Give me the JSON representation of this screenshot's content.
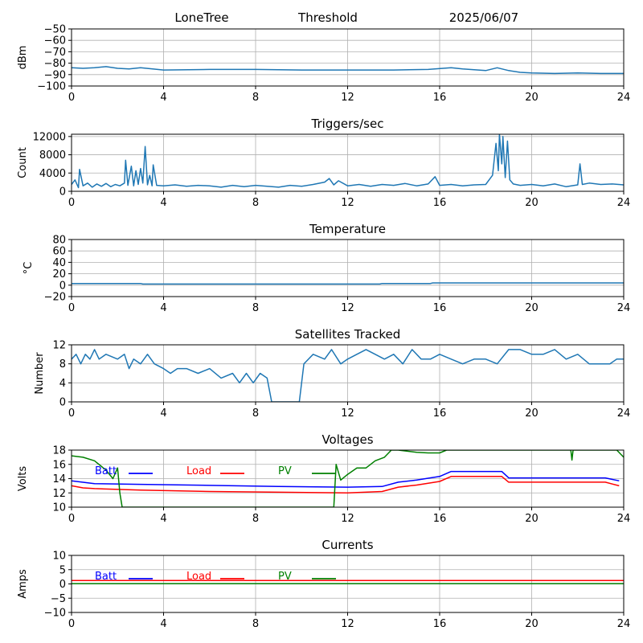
{
  "header": {
    "station": "LoneTree",
    "mode": "Threshold",
    "date": "2025/06/07"
  },
  "x_ticks": [
    "0",
    "4",
    "8",
    "12",
    "16",
    "20",
    "24"
  ],
  "chart_data": [
    {
      "id": "dbm",
      "type": "line",
      "title": "",
      "xlabel": "",
      "ylabel": "dBm",
      "xlim": [
        0,
        24
      ],
      "ylim": [
        -100,
        -50
      ],
      "yticks": [
        -100,
        -90,
        -80,
        -70,
        -60,
        -50
      ],
      "ytick_labels": [
        "−100",
        "−90",
        "−80",
        "−70",
        "−60",
        "−50"
      ],
      "grid": true,
      "series": [
        {
          "color": "#1f77b4",
          "x": [
            0,
            0.5,
            1,
            1.5,
            2,
            2.5,
            3,
            4,
            6,
            8,
            10,
            12,
            14,
            15.5,
            16.5,
            17,
            18,
            18.5,
            19,
            19.5,
            20,
            21,
            22,
            23,
            24
          ],
          "y": [
            -84,
            -84.5,
            -84,
            -83,
            -84.5,
            -85,
            -84,
            -86,
            -85.5,
            -85.5,
            -86,
            -86,
            -86,
            -85.5,
            -84,
            -85,
            -86.5,
            -84,
            -86.5,
            -88,
            -88.5,
            -89,
            -88.5,
            -89,
            -89
          ]
        }
      ]
    },
    {
      "id": "triggers",
      "type": "line",
      "title": "Triggers/sec",
      "xlabel": "",
      "ylabel": "Count",
      "xlim": [
        0,
        24
      ],
      "ylim": [
        0,
        12500
      ],
      "yticks": [
        0,
        4000,
        8000,
        12000
      ],
      "ytick_labels": [
        "0",
        "4000",
        "8000",
        "12000"
      ],
      "grid": true,
      "series": [
        {
          "color": "#1f77b4",
          "x": [
            0,
            0.15,
            0.3,
            0.35,
            0.5,
            0.7,
            0.9,
            1.1,
            1.3,
            1.5,
            1.7,
            1.9,
            2.1,
            2.3,
            2.35,
            2.45,
            2.6,
            2.7,
            2.8,
            2.9,
            3.0,
            3.1,
            3.2,
            3.3,
            3.4,
            3.5,
            3.55,
            3.7,
            4,
            4.5,
            5,
            5.5,
            6,
            6.5,
            7,
            7.5,
            8,
            8.5,
            9,
            9.5,
            10,
            10.5,
            11,
            11.2,
            11.4,
            11.6,
            12,
            12.5,
            13,
            13.5,
            14,
            14.5,
            15,
            15.5,
            15.8,
            16,
            16.5,
            17,
            17.5,
            18,
            18.3,
            18.45,
            18.55,
            18.6,
            18.7,
            18.75,
            18.85,
            18.95,
            19.05,
            19.2,
            19.5,
            20,
            20.5,
            21,
            21.5,
            22,
            22.1,
            22.2,
            22.5,
            23,
            23.5,
            24
          ],
          "y": [
            1500,
            2500,
            800,
            4800,
            1200,
            1800,
            900,
            1600,
            1100,
            1700,
            1000,
            1500,
            1200,
            1800,
            6800,
            1300,
            5500,
            1200,
            4500,
            1500,
            5000,
            1800,
            9800,
            1400,
            3500,
            1200,
            5800,
            1300,
            1200,
            1400,
            1100,
            1300,
            1200,
            900,
            1300,
            1000,
            1300,
            1100,
            900,
            1300,
            1100,
            1500,
            2000,
            2800,
            1400,
            2300,
            1200,
            1500,
            1100,
            1500,
            1300,
            1700,
            1200,
            1600,
            3200,
            1300,
            1500,
            1200,
            1400,
            1500,
            3500,
            10500,
            4500,
            12500,
            6000,
            12000,
            3000,
            11000,
            2500,
            1600,
            1300,
            1500,
            1200,
            1600,
            1000,
            1400,
            6000,
            1500,
            1800,
            1500,
            1600,
            1400
          ]
        }
      ]
    },
    {
      "id": "temperature",
      "type": "line",
      "title": "Temperature",
      "xlabel": "",
      "ylabel": "°C",
      "xlim": [
        0,
        24
      ],
      "ylim": [
        -20,
        80
      ],
      "yticks": [
        -20,
        0,
        20,
        40,
        60,
        80
      ],
      "ytick_labels": [
        "−20",
        "0",
        "20",
        "40",
        "60",
        "80"
      ],
      "grid": true,
      "series": [
        {
          "color": "#1f77b4",
          "x": [
            0,
            3,
            3.1,
            13.4,
            13.5,
            15.6,
            15.7,
            24
          ],
          "y": [
            3,
            3,
            2,
            2,
            3,
            3,
            4,
            4
          ]
        }
      ]
    },
    {
      "id": "satellites",
      "type": "line",
      "title": "Satellites Tracked",
      "xlabel": "",
      "ylabel": "Number",
      "xlim": [
        0,
        24
      ],
      "ylim": [
        0,
        12
      ],
      "yticks": [
        0,
        4,
        8,
        12
      ],
      "ytick_labels": [
        "0",
        "4",
        "8",
        "12"
      ],
      "grid": true,
      "series": [
        {
          "color": "#1f77b4",
          "x": [
            0,
            0.2,
            0.4,
            0.6,
            0.8,
            1.0,
            1.2,
            1.5,
            2.0,
            2.3,
            2.5,
            2.7,
            3.0,
            3.3,
            3.6,
            4.0,
            4.3,
            4.6,
            5.0,
            5.5,
            6.0,
            6.5,
            7.0,
            7.3,
            7.6,
            7.9,
            8.2,
            8.5,
            8.7,
            9.0,
            9.5,
            9.9,
            10.1,
            10.5,
            11.0,
            11.3,
            11.7,
            12.0,
            12.4,
            12.8,
            13.2,
            13.6,
            14.0,
            14.4,
            14.8,
            15.2,
            15.6,
            16.0,
            16.5,
            17.0,
            17.5,
            18.0,
            18.5,
            19.0,
            19.5,
            20.0,
            20.5,
            21.0,
            21.5,
            22.0,
            22.5,
            23.0,
            23.4,
            23.7,
            24.0
          ],
          "y": [
            9,
            10,
            8,
            10,
            9,
            11,
            9,
            10,
            9,
            10,
            7,
            9,
            8,
            10,
            8,
            7,
            6,
            7,
            7,
            6,
            7,
            5,
            6,
            4,
            6,
            4,
            6,
            5,
            0,
            0,
            0,
            0,
            8,
            10,
            9,
            11,
            8,
            9,
            10,
            11,
            10,
            9,
            10,
            8,
            11,
            9,
            9,
            10,
            9,
            8,
            9,
            9,
            8,
            11,
            11,
            10,
            10,
            11,
            9,
            10,
            8,
            8,
            8,
            9,
            9
          ]
        }
      ]
    },
    {
      "id": "voltages",
      "type": "line",
      "title": "Voltages",
      "xlabel": "",
      "ylabel": "Volts",
      "xlim": [
        0,
        24
      ],
      "ylim": [
        10,
        18
      ],
      "yticks": [
        10,
        12,
        14,
        16,
        18
      ],
      "ytick_labels": [
        "10",
        "12",
        "14",
        "16",
        "18"
      ],
      "grid": true,
      "legend": "top-left",
      "series": [
        {
          "name": "Batt",
          "color": "#0000ff",
          "x": [
            0,
            1,
            3,
            6,
            9,
            12,
            13.5,
            14.2,
            15,
            16,
            16.5,
            17,
            18.7,
            19.0,
            22,
            23.2,
            23.8
          ],
          "y": [
            13.7,
            13.3,
            13.2,
            13.05,
            12.9,
            12.8,
            12.9,
            13.5,
            13.8,
            14.3,
            15.0,
            15.0,
            15.0,
            14.1,
            14.1,
            14.1,
            13.7
          ]
        },
        {
          "name": "Load",
          "color": "#ff0000",
          "x": [
            0,
            0.5,
            1,
            3,
            6,
            9,
            12,
            13.5,
            14.2,
            15,
            16,
            16.5,
            17,
            18.7,
            19.0,
            22,
            23.2,
            23.8
          ],
          "y": [
            13.0,
            12.7,
            12.6,
            12.4,
            12.2,
            12.1,
            12.0,
            12.2,
            12.8,
            13.1,
            13.6,
            14.3,
            14.3,
            14.3,
            13.5,
            13.5,
            13.5,
            13.0
          ]
        },
        {
          "name": "PV",
          "color": "#008000",
          "x": [
            0,
            0.5,
            1.0,
            1.5,
            1.8,
            2.0,
            2.1,
            2.2,
            11.4,
            11.5,
            11.7,
            12.0,
            12.4,
            12.8,
            13.2,
            13.6,
            13.9,
            14.2,
            15.0,
            15.5,
            16.0,
            16.3,
            21.7,
            21.75,
            21.8,
            23.7,
            24
          ],
          "y": [
            17.2,
            17.0,
            16.5,
            15.2,
            14.0,
            15.5,
            12.0,
            10.0,
            10.0,
            16.0,
            13.8,
            14.6,
            15.5,
            15.5,
            16.5,
            17.0,
            18.0,
            18.0,
            17.7,
            17.6,
            17.6,
            18.0,
            18.0,
            16.6,
            18.0,
            18.0,
            17.0
          ]
        }
      ]
    },
    {
      "id": "currents",
      "type": "line",
      "title": "Currents",
      "xlabel": "",
      "ylabel": "Amps",
      "xlim": [
        0,
        24
      ],
      "ylim": [
        -10,
        10
      ],
      "yticks": [
        -10,
        -5,
        0,
        5,
        10
      ],
      "ytick_labels": [
        "−10",
        "−5",
        "0",
        "5",
        "10"
      ],
      "grid": true,
      "legend": "top-left",
      "series": [
        {
          "name": "Batt",
          "color": "#0000ff",
          "x": [
            0,
            24
          ],
          "y": [
            1.2,
            1.2
          ]
        },
        {
          "name": "Load",
          "color": "#ff0000",
          "x": [
            0,
            24
          ],
          "y": [
            1.2,
            1.2
          ]
        },
        {
          "name": "PV",
          "color": "#008000",
          "x": [
            0,
            24
          ],
          "y": [
            0.1,
            0.1
          ]
        }
      ]
    }
  ]
}
